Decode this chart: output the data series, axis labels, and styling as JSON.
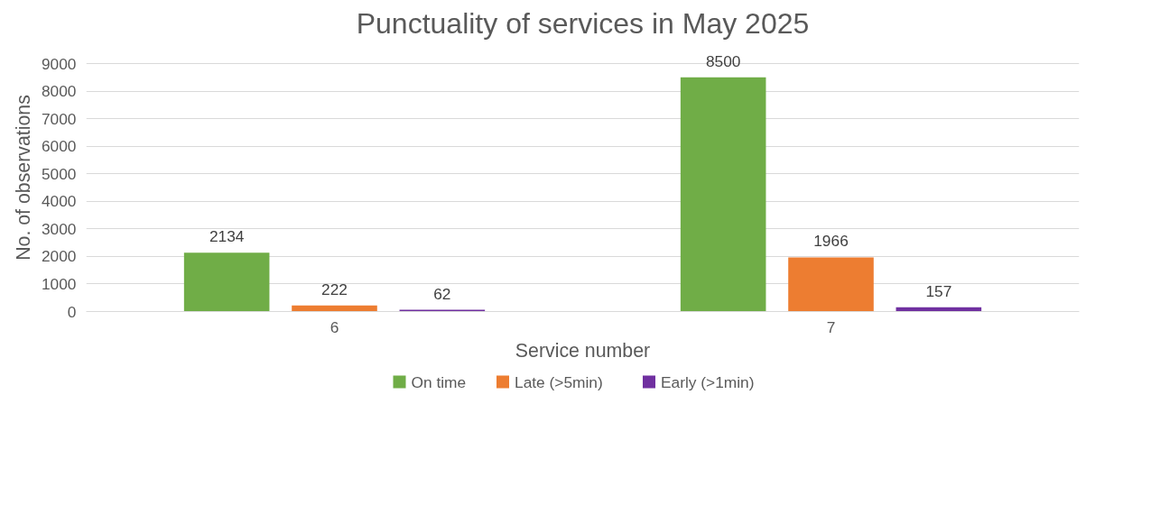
{
  "chart_data": {
    "type": "bar",
    "title": "Punctuality of services in May 2025",
    "xlabel": "Service number",
    "ylabel": "No. of observations",
    "categories": [
      "6",
      "7"
    ],
    "series": [
      {
        "name": "On time",
        "color": "#70ad47",
        "values": [
          2134,
          8500
        ]
      },
      {
        "name": "Late (>5min)",
        "color": "#ed7d31",
        "values": [
          222,
          1966
        ]
      },
      {
        "name": "Early (>1min)",
        "color": "#7030a0",
        "values": [
          62,
          157
        ]
      }
    ],
    "ylim": [
      0,
      9000
    ],
    "yticks": [
      0,
      1000,
      2000,
      3000,
      4000,
      5000,
      6000,
      7000,
      8000,
      9000
    ],
    "grid": "y",
    "legend": "bottom",
    "data_labels": true
  }
}
